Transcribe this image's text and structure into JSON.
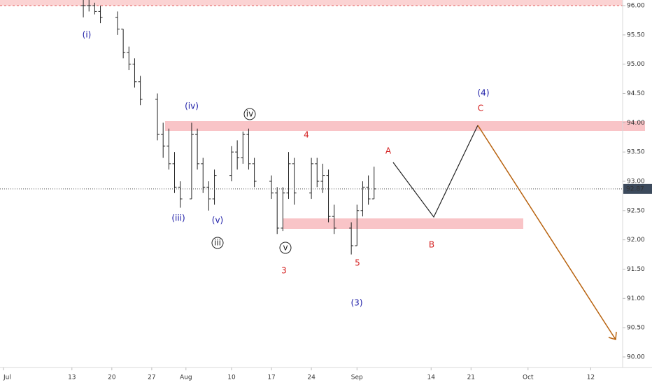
{
  "chart_data": {
    "type": "ohlc",
    "x": [
      14,
      15,
      16,
      17,
      20,
      21,
      22,
      23,
      24,
      27,
      28,
      29,
      30,
      31,
      33,
      34,
      35,
      36,
      37,
      40,
      41,
      42,
      43,
      44,
      47,
      48,
      49,
      50,
      51,
      54,
      55,
      56,
      57,
      58,
      61,
      62,
      63,
      64,
      65
    ],
    "open": [
      96.0,
      96.0,
      96.0,
      95.9,
      95.8,
      95.6,
      95.2,
      95.0,
      94.7,
      94.4,
      93.8,
      93.6,
      93.3,
      92.9,
      92.7,
      93.8,
      93.3,
      92.9,
      92.7,
      93.1,
      93.5,
      93.4,
      93.8,
      93.3,
      93.0,
      92.8,
      92.2,
      92.8,
      93.3,
      92.8,
      93.3,
      93.0,
      93.1,
      92.4,
      92.2,
      91.9,
      92.5,
      92.9,
      92.7
    ],
    "high": [
      96.1,
      96.1,
      96.05,
      96.0,
      95.9,
      95.6,
      95.3,
      95.1,
      94.8,
      94.5,
      94.0,
      93.9,
      93.5,
      93.0,
      94.0,
      93.9,
      93.4,
      93.0,
      93.2,
      93.6,
      93.7,
      93.85,
      93.9,
      93.4,
      93.1,
      92.9,
      92.9,
      93.5,
      93.4,
      93.4,
      93.4,
      93.3,
      93.2,
      92.6,
      92.3,
      92.6,
      93.0,
      93.1,
      93.25
    ],
    "low": [
      95.8,
      95.9,
      95.85,
      95.7,
      95.5,
      95.1,
      94.9,
      94.6,
      94.3,
      93.7,
      93.4,
      93.2,
      92.8,
      92.55,
      92.7,
      93.2,
      92.8,
      92.5,
      92.6,
      93.0,
      93.2,
      93.3,
      93.2,
      92.9,
      92.7,
      92.1,
      92.15,
      92.7,
      92.6,
      92.7,
      92.9,
      92.8,
      92.3,
      92.1,
      91.75,
      91.9,
      92.4,
      92.6,
      92.7
    ],
    "close": [
      96.0,
      96.0,
      95.9,
      95.8,
      95.6,
      95.2,
      95.0,
      94.7,
      94.4,
      93.8,
      93.6,
      93.3,
      92.9,
      92.7,
      93.8,
      93.3,
      92.9,
      92.7,
      93.1,
      93.5,
      93.4,
      93.8,
      93.3,
      93.0,
      92.8,
      92.2,
      92.8,
      93.3,
      92.8,
      93.3,
      93.0,
      93.1,
      92.4,
      92.2,
      91.9,
      92.5,
      92.9,
      92.7,
      92.87
    ],
    "color": "#222222",
    "xlim": [
      -0.613,
      108.59
    ],
    "ylim": [
      89.82,
      96.096
    ],
    "xticks": [
      {
        "value": 0,
        "label": "Jul"
      },
      {
        "value": 12,
        "label": "13"
      },
      {
        "value": 19,
        "label": "20"
      },
      {
        "value": 26,
        "label": "27"
      },
      {
        "value": 32,
        "label": "Aug"
      },
      {
        "value": 40,
        "label": "10"
      },
      {
        "value": 47,
        "label": "17"
      },
      {
        "value": 54,
        "label": "24"
      },
      {
        "value": 62,
        "label": "Sep"
      },
      {
        "value": 75,
        "label": "14"
      },
      {
        "value": 82,
        "label": "21"
      },
      {
        "value": 92,
        "label": "Oct"
      },
      {
        "value": 103,
        "label": "12"
      }
    ],
    "yticks": [
      {
        "value": 90,
        "label": "90.00"
      },
      {
        "value": 90.5,
        "label": "90.50"
      },
      {
        "value": 91,
        "label": "91.00"
      },
      {
        "value": 91.5,
        "label": "91.50"
      },
      {
        "value": 92,
        "label": "92.00"
      },
      {
        "value": 92.5,
        "label": "92.50"
      },
      {
        "value": 93,
        "label": "93.00"
      },
      {
        "value": 93.5,
        "label": "93.50"
      },
      {
        "value": 94,
        "label": "94.00"
      },
      {
        "value": 94.5,
        "label": "94.50"
      },
      {
        "value": 95,
        "label": "95.00"
      },
      {
        "value": 95.5,
        "label": "95.50"
      },
      {
        "value": 96,
        "label": "96.00"
      }
    ],
    "annotations": [
      {
        "text": "(i)",
        "color": "#1a1aa6"
      },
      {
        "text": "(iv)",
        "color": "#1a1aa6"
      },
      {
        "text": "(iii)",
        "color": "#1a1aa6"
      },
      {
        "text": "(v)",
        "color": "#1a1aa6"
      },
      {
        "text": "(3)",
        "color": "#1a1aa6"
      },
      {
        "text": "(4)",
        "color": "#1a1aa6"
      },
      {
        "text": "iv",
        "color": "#222222",
        "circled": true
      },
      {
        "text": "iii",
        "color": "#222222",
        "circled": true
      },
      {
        "text": "v",
        "color": "#222222",
        "circled": true
      },
      {
        "text": "4",
        "color": "#d42121"
      },
      {
        "text": "3",
        "color": "#d42121"
      },
      {
        "text": "5",
        "color": "#d42121"
      },
      {
        "text": "A",
        "color": "#d42121"
      },
      {
        "text": "B",
        "color": "#d42121"
      },
      {
        "text": "C",
        "color": "#d42121"
      }
    ]
  }
}
